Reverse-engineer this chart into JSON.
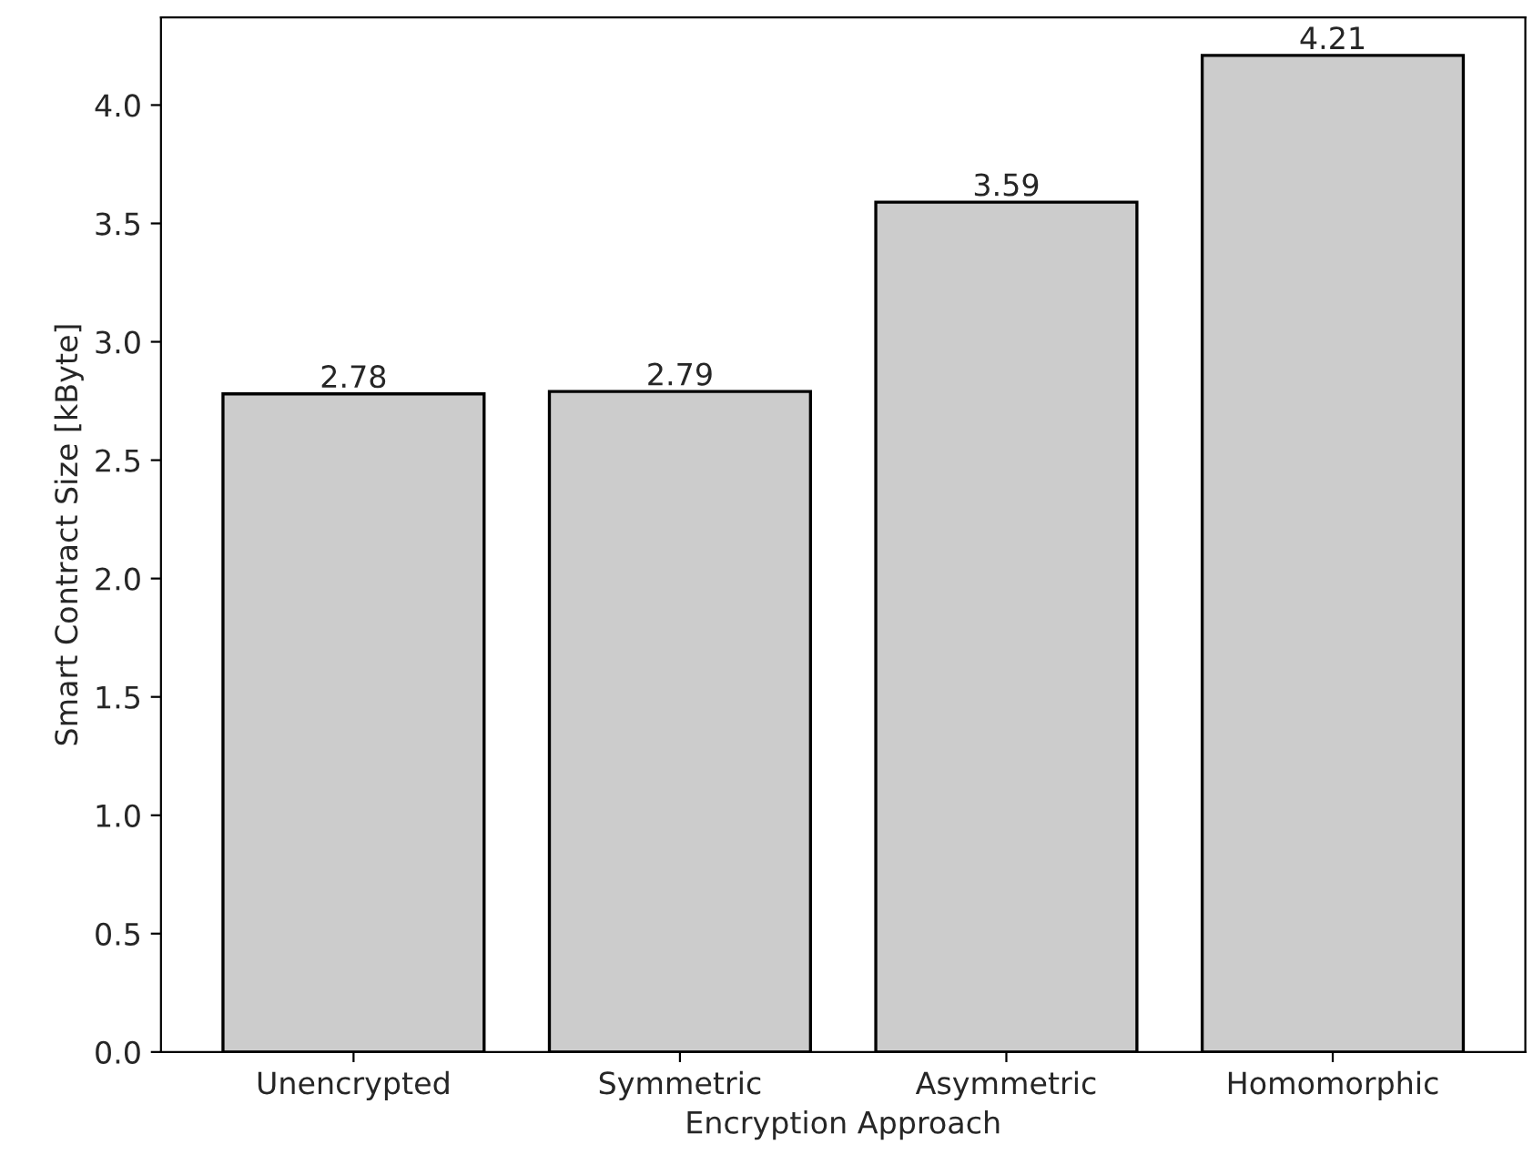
{
  "chart_data": {
    "type": "bar",
    "xlabel": "Encryption Approach",
    "ylabel": "Smart Contract Size [kByte]",
    "categories": [
      "Unencrypted",
      "Symmetric",
      "Asymmetric",
      "Homomorphic"
    ],
    "values": [
      2.78,
      2.79,
      3.59,
      4.21
    ],
    "color": "#cccccc",
    "ylim": [
      0,
      4.37
    ],
    "yticks": [
      {
        "value": 0,
        "label": "0.0"
      },
      {
        "value": 0.5,
        "label": "0.5"
      },
      {
        "value": 1,
        "label": "1.0"
      },
      {
        "value": 1.5,
        "label": "1.5"
      },
      {
        "value": 2,
        "label": "2.0"
      },
      {
        "value": 2.5,
        "label": "2.5"
      },
      {
        "value": 3,
        "label": "3.0"
      },
      {
        "value": 3.5,
        "label": "3.5"
      },
      {
        "value": 4,
        "label": "4.0"
      }
    ],
    "data_labels": true
  }
}
